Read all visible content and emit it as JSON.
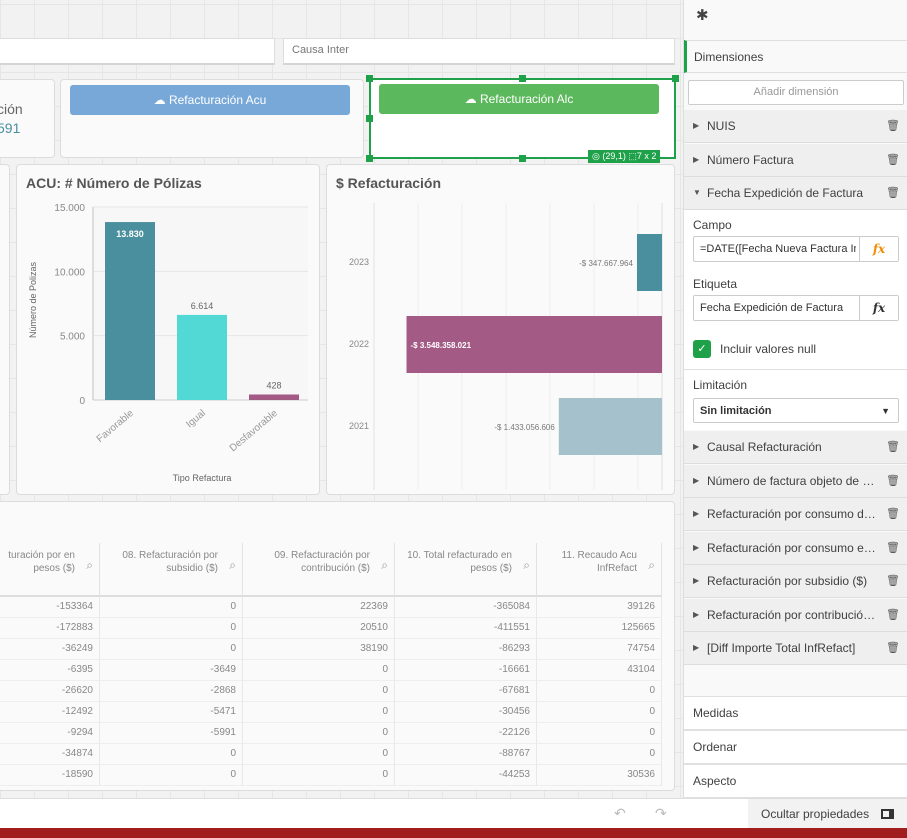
{
  "filters": {
    "left": "",
    "right": "Causa Inter"
  },
  "kpi": {
    "label": "ción",
    "value": "591"
  },
  "buttons": {
    "acu": "Refacturación Acu",
    "alc": "Refacturación Alc"
  },
  "selection": {
    "badge": "(29,1)",
    "size": "7 x 2"
  },
  "chart_data": [
    {
      "type": "bar",
      "title": "ACU: # Número de Pólizas",
      "xlabel": "Tipo Refactura",
      "ylabel": "Número de Polizas",
      "categories": [
        "Favorable",
        "Igual",
        "Desfavorable"
      ],
      "values": [
        13830,
        6614,
        428
      ],
      "value_labels": [
        "13.830",
        "6.614",
        "428"
      ],
      "colors": [
        "#4a8f9e",
        "#52d9d5",
        "#a35a85"
      ],
      "ylim": [
        0,
        15000
      ],
      "yticks": [
        0,
        5000,
        10000,
        15000
      ],
      "ytick_labels": [
        "0",
        "5.000",
        "10.000",
        "15.000"
      ],
      "grid": true
    },
    {
      "type": "bar",
      "orientation": "horizontal",
      "title": "$ Refacturación",
      "categories": [
        "2023",
        "2022",
        "2021"
      ],
      "values": [
        -347667964,
        -3548358021,
        -1433056606
      ],
      "value_labels": [
        "-$ 347.667.964",
        "-$ 3.548.358.021",
        "-$ 1.433.056.606"
      ],
      "colors": [
        "#4a8f9e",
        "#a35a85",
        "#a5c1cb"
      ],
      "xlim": [
        -4000000000,
        0
      ],
      "grid": true
    }
  ],
  "table": {
    "headers": [
      "turación por en pesos ($)",
      "08. Refacturación por subsidio ($)",
      "09. Refacturación por contribución ($)",
      "10. Total refacturado en pesos ($)",
      "11. Recaudo Acu InfRefact"
    ],
    "rows": [
      [
        "-153364",
        "0",
        "22369",
        "-365084",
        "39126"
      ],
      [
        "-172883",
        "0",
        "20510",
        "-411551",
        "125665"
      ],
      [
        "-36249",
        "0",
        "38190",
        "-86293",
        "74754"
      ],
      [
        "-6395",
        "-3649",
        "0",
        "-16661",
        "43104"
      ],
      [
        "-26620",
        "-2868",
        "0",
        "-67681",
        "0"
      ],
      [
        "-12492",
        "-5471",
        "0",
        "-30456",
        "0"
      ],
      [
        "-9294",
        "-5991",
        "0",
        "-22126",
        "0"
      ],
      [
        "-34874",
        "0",
        "0",
        "-88767",
        "0"
      ],
      [
        "-18590",
        "0",
        "0",
        "-44253",
        "30536"
      ]
    ]
  },
  "panel": {
    "dimensions_label": "Dimensiones",
    "add_dimension": "Añadir dimensión",
    "dims_top": [
      "NUIS",
      "Número Factura",
      "Fecha Expedición de Factura"
    ],
    "campo_label": "Campo",
    "campo_value": "=DATE([Fecha Nueva Factura Inf",
    "etiqueta_label": "Etiqueta",
    "etiqueta_value": "Fecha Expedición de Factura",
    "fx": "fx",
    "null_label": "Incluir valores null",
    "limit_label": "Limitación",
    "limit_value": "Sin limitación",
    "dims_bottom": [
      "Causal Refacturación",
      "Número de factura objeto de r…",
      "Refacturación por consumo d…",
      "Refacturación por consumo e…",
      "Refacturación por subsidio ($)",
      "Refacturación por contribució…",
      "[Diff Importe Total InfRefact]"
    ],
    "sections": [
      "Medidas",
      "Ordenar",
      "Aspecto"
    ],
    "hide_props": "Ocultar propiedades"
  },
  "colors": {
    "accent": "#1fa14a",
    "button_acu": "#77a8d8",
    "button_alc": "#5cb85c",
    "footer": "#a21d1d"
  }
}
